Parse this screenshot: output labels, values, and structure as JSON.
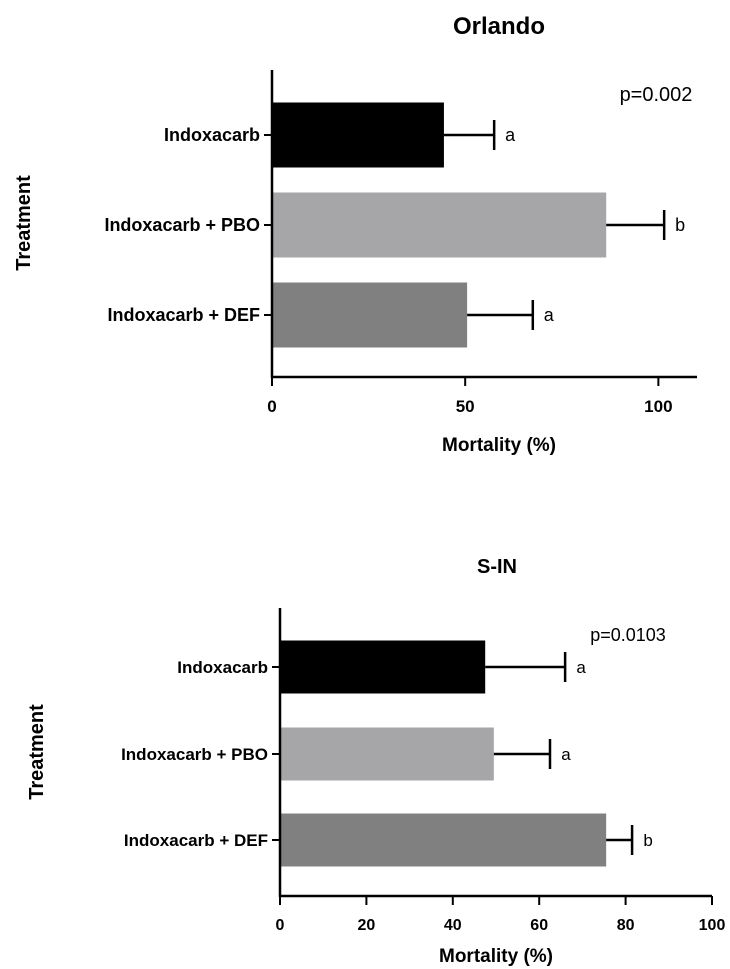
{
  "chart_data": [
    {
      "type": "bar",
      "orientation": "horizontal",
      "title": "Orlando",
      "xlabel": "Mortality (%)",
      "ylabel": "Treatment",
      "annotation": "p=0.002",
      "categories": [
        "Indoxacarb",
        "Indoxacarb + PBO",
        "Indoxacarb + DEF"
      ],
      "values": [
        44.5,
        86.5,
        50.5
      ],
      "errors": [
        13,
        15,
        17
      ],
      "significance_letters": [
        "a",
        "b",
        "a"
      ],
      "bar_colors": [
        "#000000",
        "#a6a6a8",
        "#808080"
      ],
      "xlim": [
        0,
        110
      ],
      "xticks": [
        0,
        50,
        100
      ],
      "xtick_labels": [
        "0",
        "50",
        "100"
      ],
      "grid": false
    },
    {
      "type": "bar",
      "orientation": "horizontal",
      "title": "S-IN",
      "xlabel": "Mortality (%)",
      "ylabel": "Treatment",
      "annotation": "p=0.0103",
      "categories": [
        "Indoxacarb",
        "Indoxacarb + PBO",
        "Indoxacarb + DEF"
      ],
      "values": [
        47.5,
        49.5,
        75.5
      ],
      "errors": [
        18.5,
        13,
        6
      ],
      "significance_letters": [
        "a",
        "a",
        "b"
      ],
      "bar_colors": [
        "#000000",
        "#a6a6a8",
        "#808080"
      ],
      "xlim": [
        0,
        100
      ],
      "xticks": [
        0,
        20,
        40,
        60,
        80,
        100
      ],
      "xtick_labels": [
        "0",
        "20",
        "40",
        "60",
        "80",
        "100"
      ],
      "grid": false
    }
  ]
}
